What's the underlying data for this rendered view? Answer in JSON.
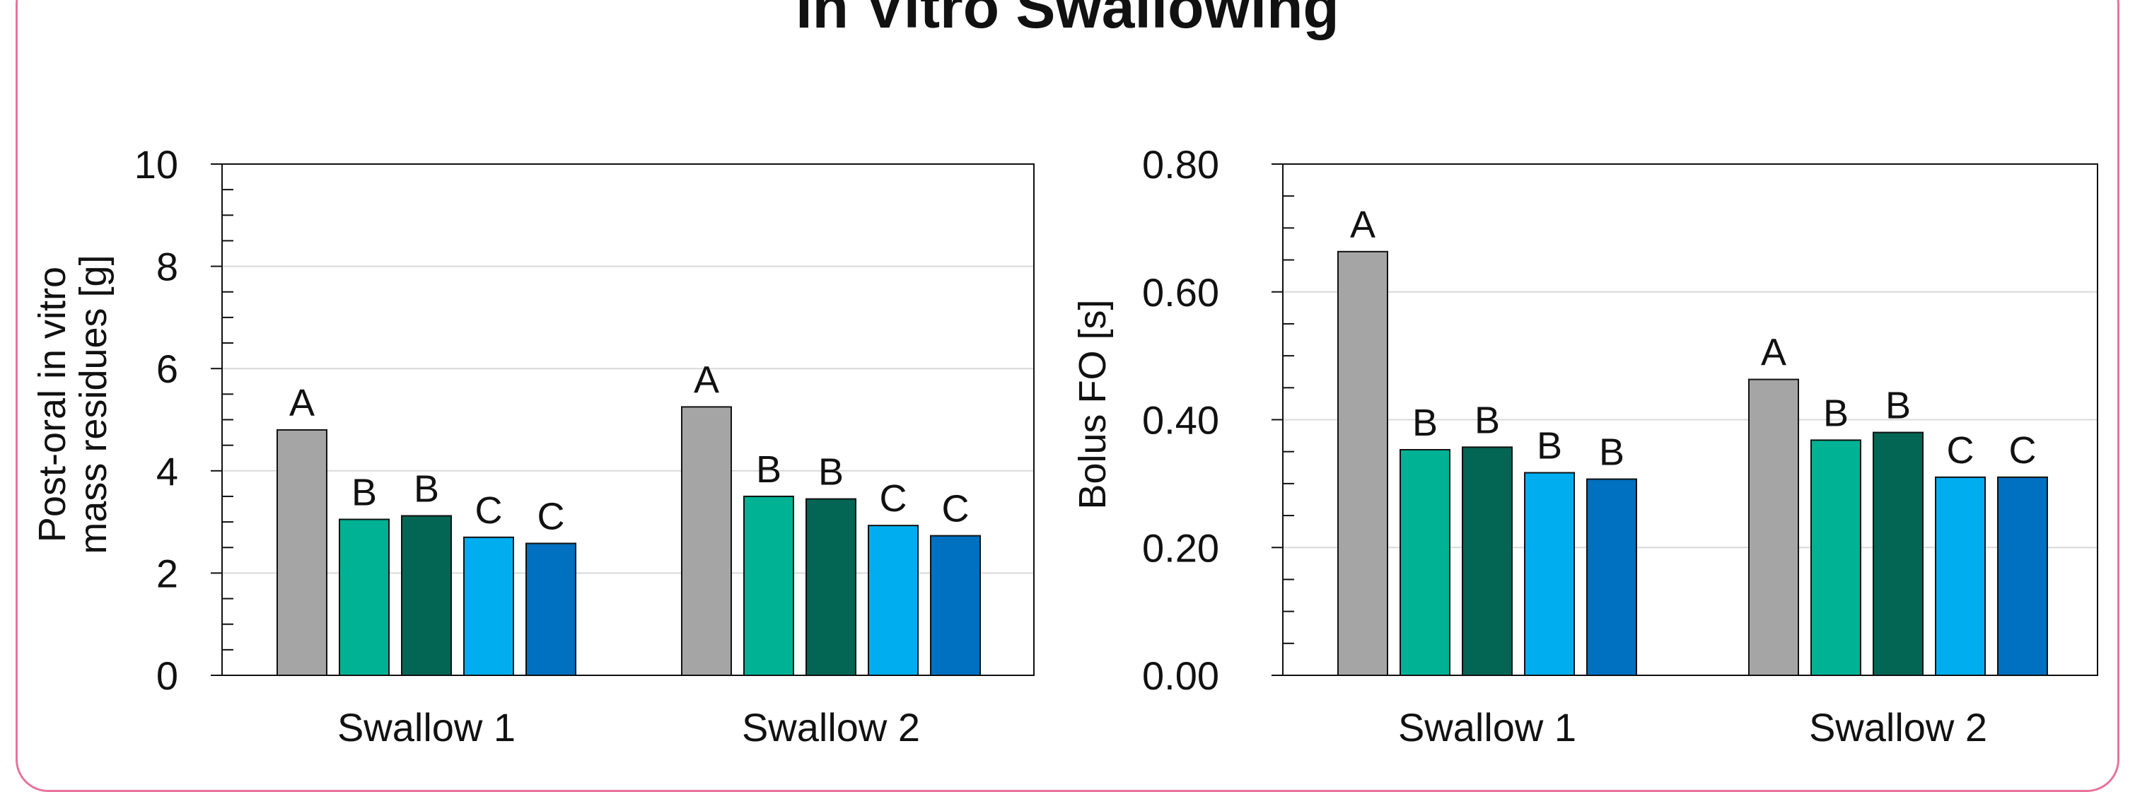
{
  "panel_title": "In Vitro Swallowing",
  "colors": {
    "border": "#e8739b",
    "grid": "#d9d9d9",
    "series": [
      "#a5a5a5",
      "#00b294",
      "#036553",
      "#00aeef",
      "#0070c0"
    ]
  },
  "chart_data": [
    {
      "type": "bar",
      "title": "",
      "xlabel": "",
      "ylabel": "Post-oral in vitro mass residues [g]",
      "ylabel_lines": [
        "Post-oral in vitro",
        "mass residues [g]"
      ],
      "ylim": [
        0,
        10
      ],
      "yticks": [
        0,
        2,
        4,
        6,
        8,
        10
      ],
      "ytick_labels": [
        "0",
        "2",
        "4",
        "6",
        "8",
        "10"
      ],
      "minor_ticks_per_major": 4,
      "grid": true,
      "legend": "none",
      "categories": [
        "Swallow 1",
        "Swallow 2"
      ],
      "series": [
        {
          "values": [
            4.8,
            5.25
          ],
          "labels": [
            "A",
            "A"
          ]
        },
        {
          "values": [
            3.05,
            3.5
          ],
          "labels": [
            "B",
            "B"
          ]
        },
        {
          "values": [
            3.12,
            3.45
          ],
          "labels": [
            "B",
            "B"
          ]
        },
        {
          "values": [
            2.7,
            2.93
          ],
          "labels": [
            "C",
            "C"
          ]
        },
        {
          "values": [
            2.58,
            2.73
          ],
          "labels": [
            "C",
            "C"
          ]
        }
      ]
    },
    {
      "type": "bar",
      "title": "",
      "xlabel": "",
      "ylabel": "Bolus FO [s]",
      "ylabel_lines": [
        "Bolus FO [s]"
      ],
      "ylim": [
        0,
        0.8
      ],
      "yticks": [
        0,
        0.2,
        0.4,
        0.6,
        0.8
      ],
      "ytick_labels": [
        "0.00",
        "0.20",
        "0.40",
        "0.60",
        "0.80"
      ],
      "minor_ticks_per_major": 4,
      "grid": true,
      "legend": "none",
      "categories": [
        "Swallow 1",
        "Swallow 2"
      ],
      "series": [
        {
          "values": [
            0.663,
            0.463
          ],
          "labels": [
            "A",
            "A"
          ]
        },
        {
          "values": [
            0.353,
            0.368
          ],
          "labels": [
            "B",
            "B"
          ]
        },
        {
          "values": [
            0.357,
            0.38
          ],
          "labels": [
            "B",
            "B"
          ]
        },
        {
          "values": [
            0.317,
            0.31
          ],
          "labels": [
            "B",
            "C"
          ]
        },
        {
          "values": [
            0.307,
            0.31
          ],
          "labels": [
            "B",
            "C"
          ]
        }
      ]
    }
  ]
}
